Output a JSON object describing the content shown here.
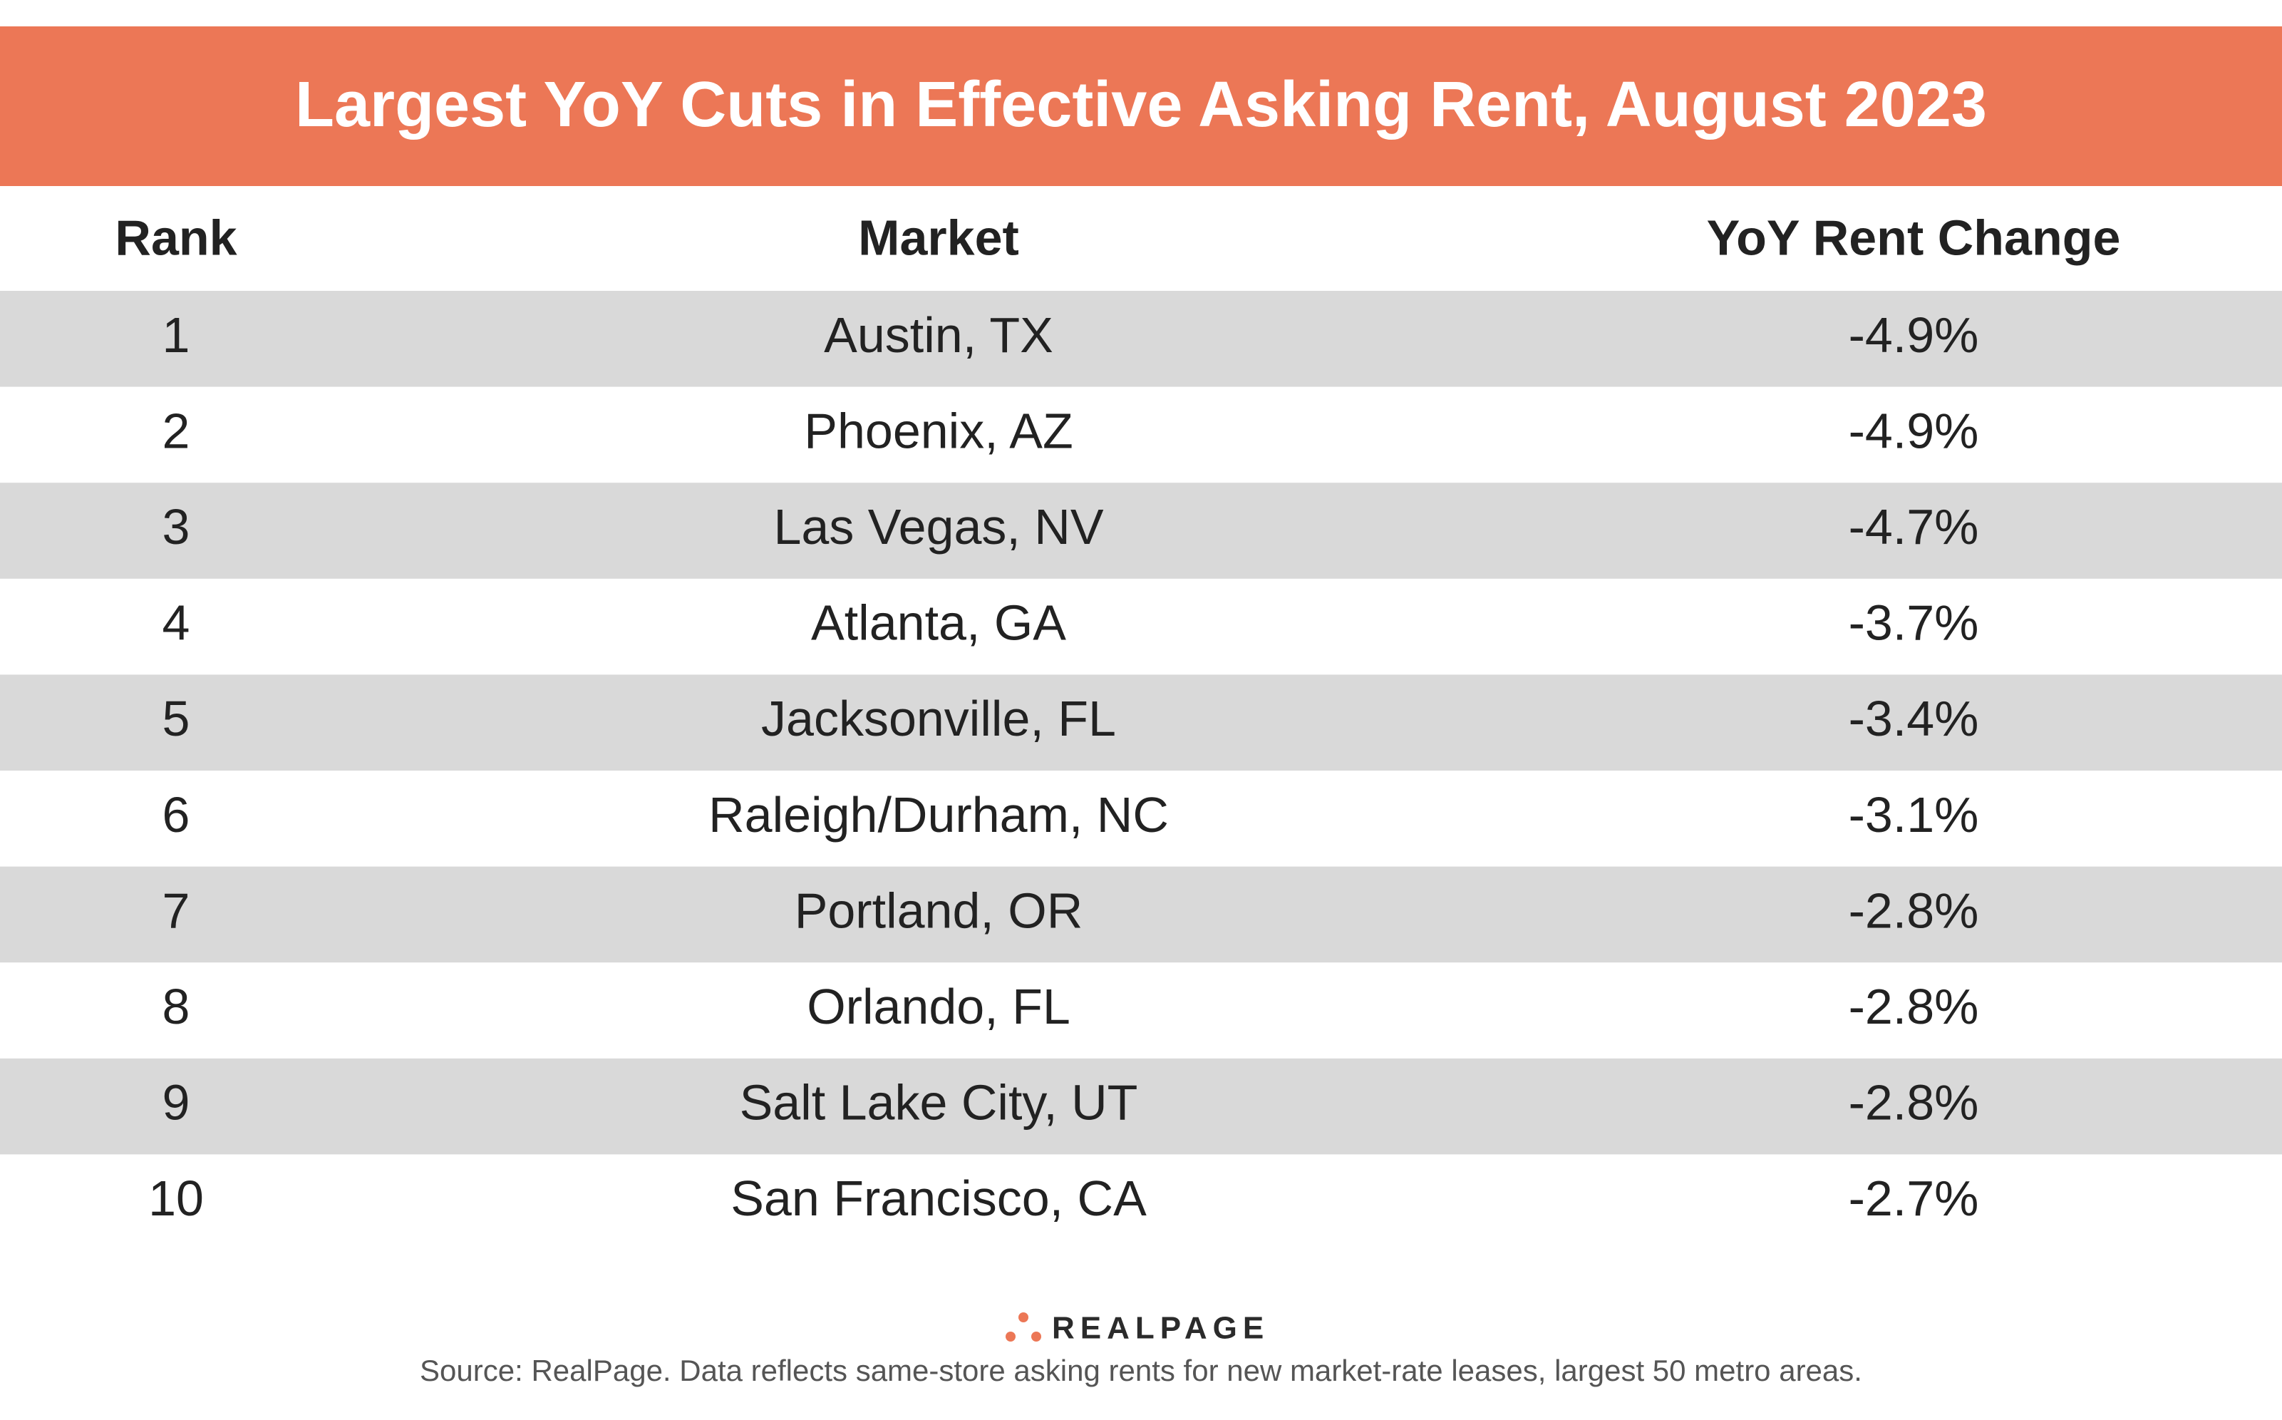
{
  "header": {
    "title": "Largest YoY Cuts in Effective Asking Rent, August 2023"
  },
  "table": {
    "columns": [
      "Rank",
      "Market",
      "YoY Rent Change"
    ],
    "rows": [
      [
        "1",
        "Austin, TX",
        "-4.9%"
      ],
      [
        "2",
        "Phoenix, AZ",
        "-4.9%"
      ],
      [
        "3",
        "Las Vegas, NV",
        "-4.7%"
      ],
      [
        "4",
        "Atlanta, GA",
        "-3.7%"
      ],
      [
        "5",
        "Jacksonville, FL",
        "-3.4%"
      ],
      [
        "6",
        "Raleigh/Durham, NC",
        "-3.1%"
      ],
      [
        "7",
        "Portland, OR",
        "-2.8%"
      ],
      [
        "8",
        "Orlando, FL",
        "-2.8%"
      ],
      [
        "9",
        "Salt Lake City, UT",
        "-2.8%"
      ],
      [
        "10",
        "San Francisco, CA",
        "-2.7%"
      ]
    ]
  },
  "footer": {
    "logo": "REALPAGE",
    "source": "Source: RealPage. Data reflects same-store asking rents for new market-rate leases, largest 50 metro areas."
  }
}
